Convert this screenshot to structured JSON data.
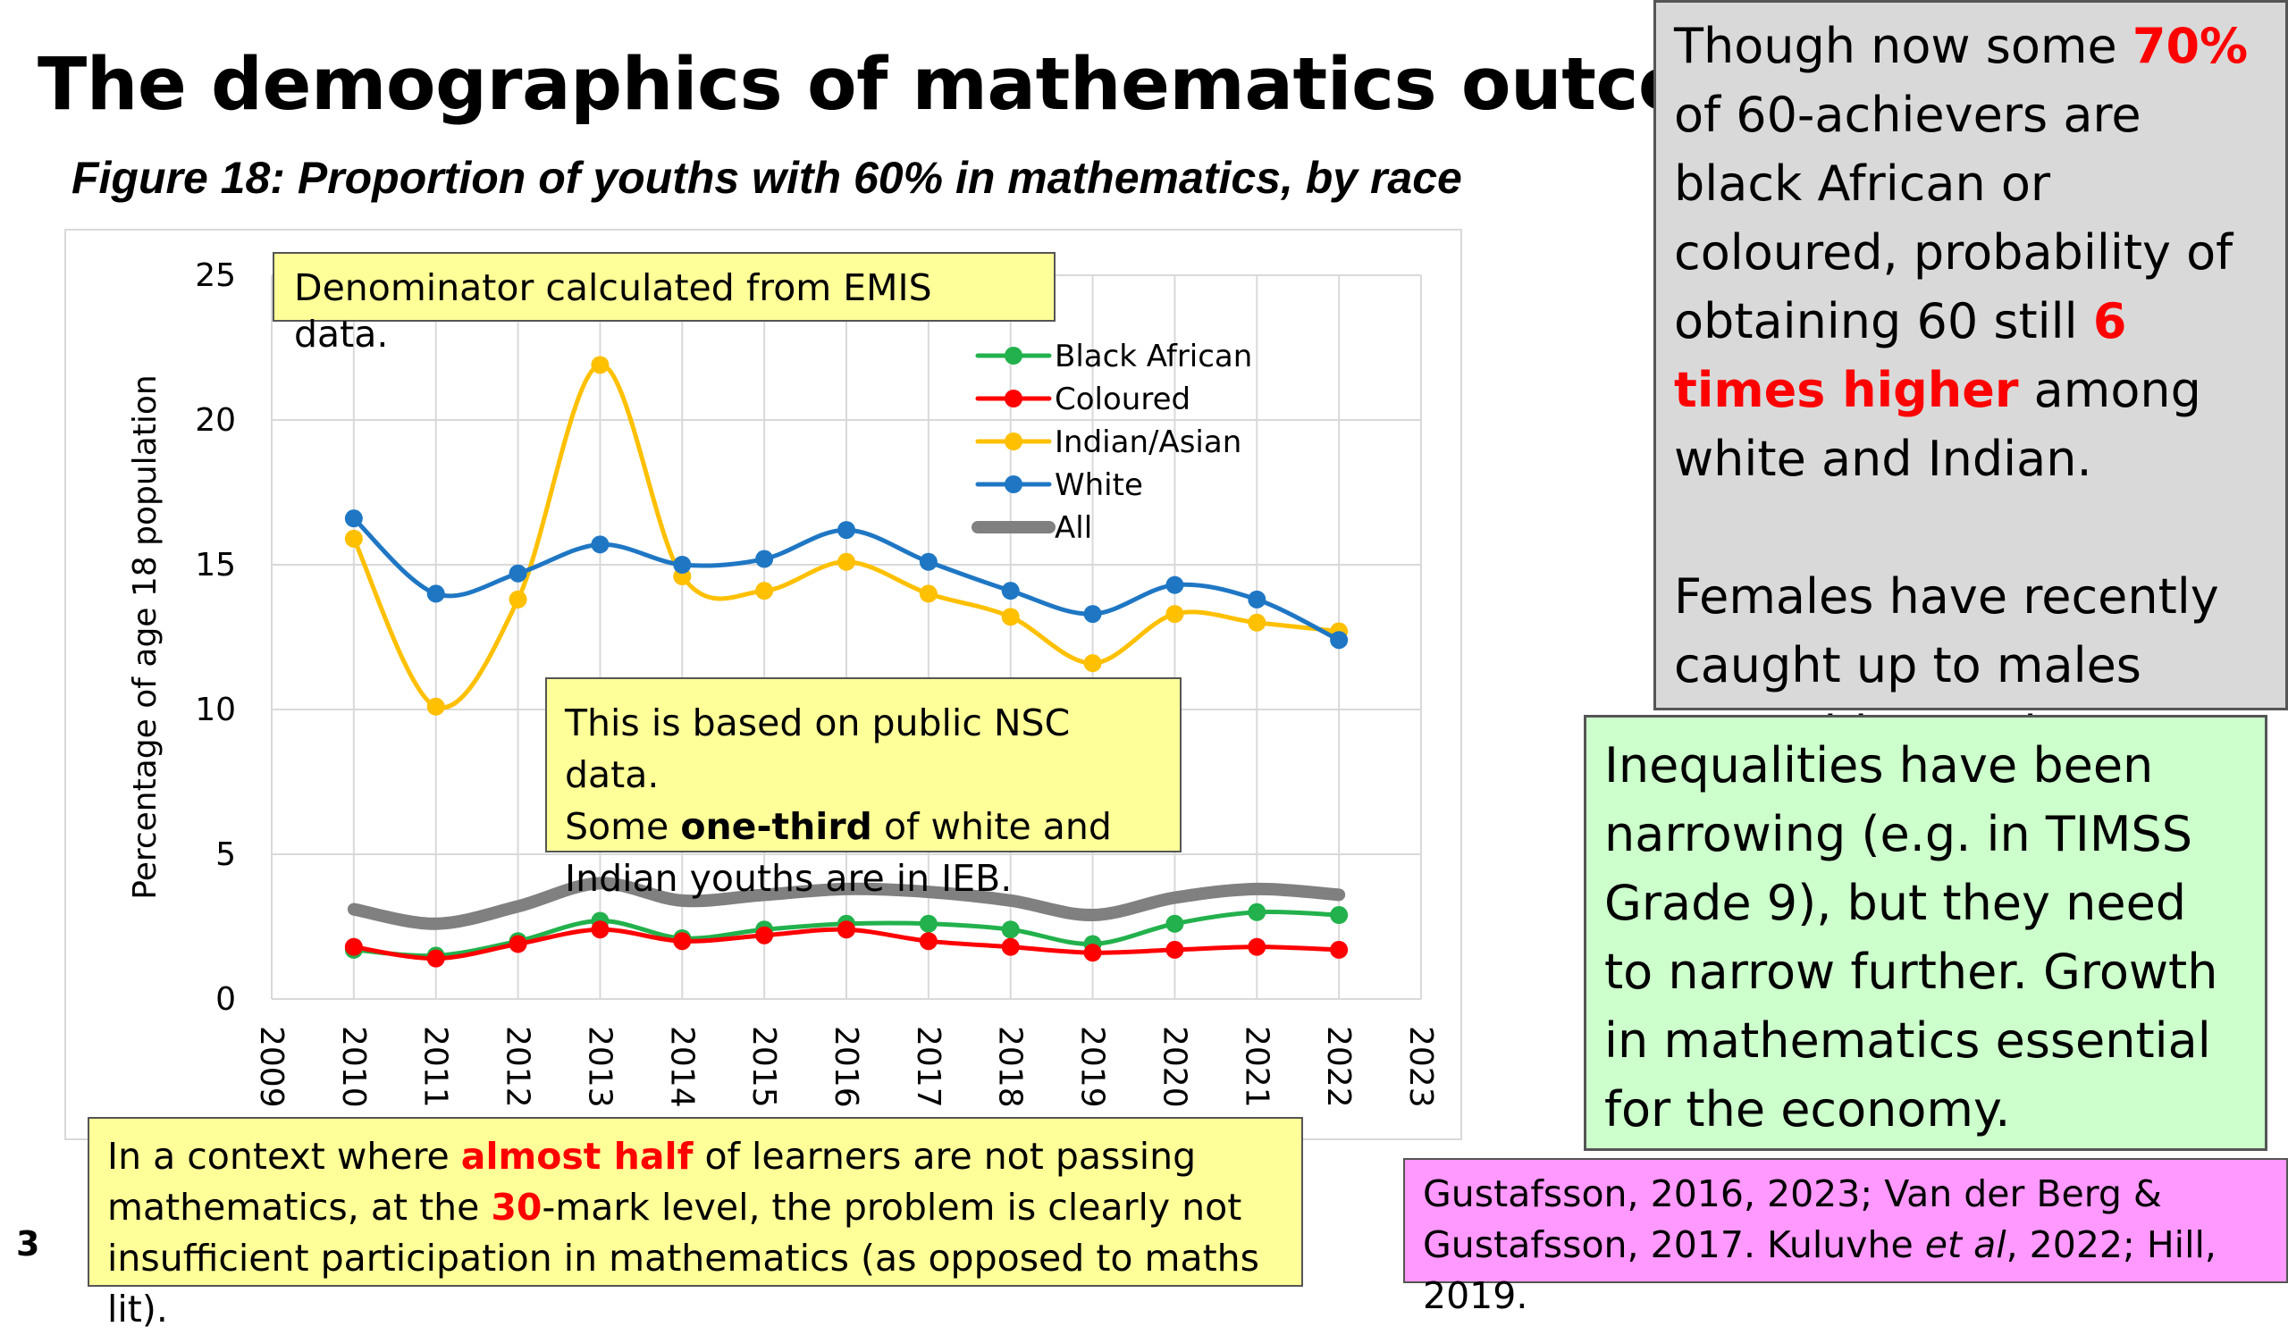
{
  "title": "The demographics of mathematics outcomes",
  "subtitle": "Figure 18: Proportion of youths with 60% in mathematics, by race",
  "slide_number": "3",
  "notes": {
    "emis": "Denominator calculated from EMIS data.",
    "nsc_1": "This is based on public NSC data.",
    "nsc_2a": "Some ",
    "nsc_2b": "one-third",
    "nsc_2c": " of white and",
    "nsc_3": "Indian youths are in IEB.",
    "context_1a": "In a context where ",
    "context_1b": "almost half",
    "context_1c": " of learners are not passing",
    "context_2a": "mathematics, at the ",
    "context_2b": "30",
    "context_2c": "-mark level, the problem is clearly not",
    "context_3": "insufficient participation in mathematics (as opposed to maths lit)."
  },
  "gray_box": {
    "p1a": "Though now some ",
    "p1b": "70%",
    "p1c": " of 60-achievers are black African or coloured, probability of obtaining 60 still ",
    "p1d": "6 times higher",
    "p1e": " among white and Indian.",
    "p2": "Females have recently caught up to males w.r.t. this metric."
  },
  "green_box": "Inequalities have been narrowing (e.g. in TIMSS Grade 9), but they need to narrow further. Growth in mathematics essential for the economy.",
  "pink_box": {
    "line1": "Gustafsson, 2016, 2023; Van der Berg &",
    "line2a": "Gustafsson, 2017. Kuluvhe ",
    "line2b": "et al",
    "line2c": ", 2022; Hill, 2019."
  },
  "chart_data": {
    "type": "line",
    "title": "",
    "xlabel": "",
    "ylabel": "Percentage of age 18 population",
    "xlim": [
      2009,
      2023
    ],
    "ylim": [
      0,
      25
    ],
    "x_ticks": [
      "2009",
      "2010",
      "2011",
      "2012",
      "2013",
      "2014",
      "2015",
      "2016",
      "2017",
      "2018",
      "2019",
      "2020",
      "2021",
      "2022",
      "2023"
    ],
    "y_ticks": [
      "0",
      "5",
      "10",
      "15",
      "20",
      "25"
    ],
    "grid": true,
    "legend_position": "top-right",
    "x": [
      2010,
      2011,
      2012,
      2013,
      2014,
      2015,
      2016,
      2017,
      2018,
      2019,
      2020,
      2021,
      2022
    ],
    "series": [
      {
        "name": "Black African",
        "color": "#22b14c",
        "markers": true,
        "values": [
          1.7,
          1.5,
          2.0,
          2.7,
          2.1,
          2.4,
          2.6,
          2.6,
          2.4,
          1.9,
          2.6,
          3.0,
          2.9
        ]
      },
      {
        "name": "Coloured",
        "color": "#ff0000",
        "markers": true,
        "values": [
          1.8,
          1.4,
          1.9,
          2.4,
          2.0,
          2.2,
          2.4,
          2.0,
          1.8,
          1.6,
          1.7,
          1.8,
          1.7
        ]
      },
      {
        "name": "Indian/Asian",
        "color": "#ffc000",
        "markers": true,
        "values": [
          15.9,
          10.1,
          13.8,
          21.9,
          14.6,
          14.1,
          15.1,
          14.0,
          13.2,
          11.6,
          13.3,
          13.0,
          12.7
        ]
      },
      {
        "name": "White",
        "color": "#1f77c4",
        "markers": true,
        "values": [
          16.6,
          14.0,
          14.7,
          15.7,
          15.0,
          15.2,
          16.2,
          15.1,
          14.1,
          13.3,
          14.3,
          13.8,
          12.4
        ]
      },
      {
        "name": "All",
        "color": "#808080",
        "markers": false,
        "values": [
          3.1,
          2.6,
          3.2,
          4.0,
          3.4,
          3.6,
          3.8,
          3.7,
          3.4,
          2.9,
          3.5,
          3.8,
          3.6
        ]
      }
    ]
  }
}
